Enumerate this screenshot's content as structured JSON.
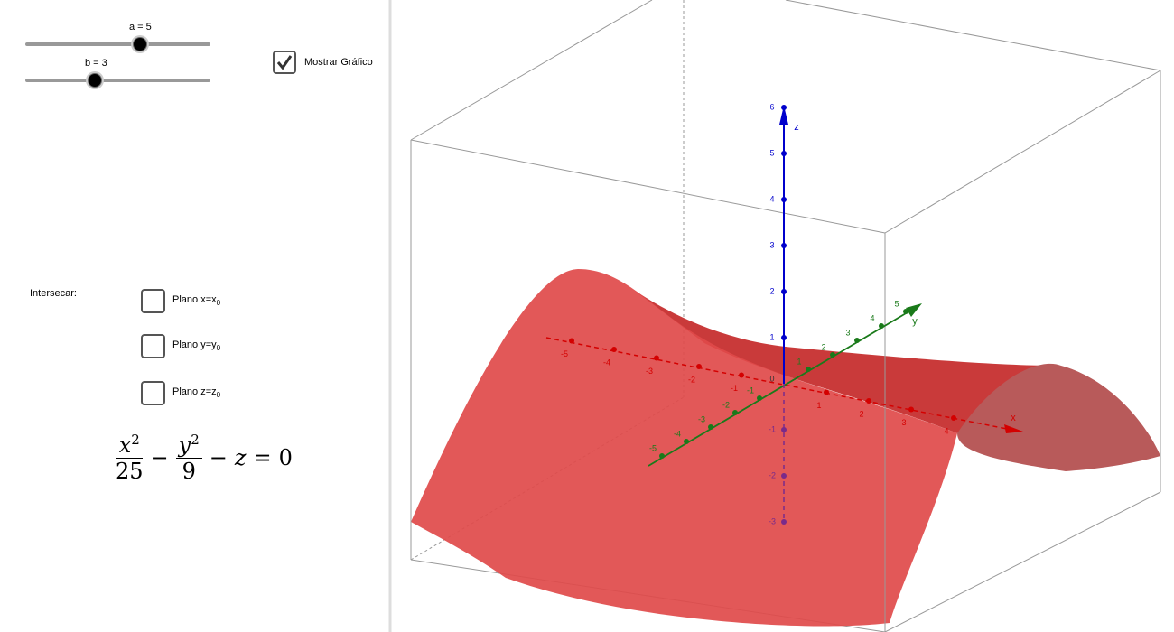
{
  "sliders": [
    {
      "label": "a = 5"
    },
    {
      "label": "b = 3"
    }
  ],
  "show_graph": {
    "label": "Mostrar Gráfico",
    "checked": true
  },
  "intersect": {
    "label": "Intersecar:",
    "options": [
      {
        "text": "Plano x=x",
        "sub": "0"
      },
      {
        "text": "Plano y=y",
        "sub": "0"
      },
      {
        "text": "Plano z=z",
        "sub": "0"
      }
    ]
  },
  "equation": {
    "t1": {
      "num": "x",
      "exp": "2",
      "den": "25"
    },
    "op1": "−",
    "t2": {
      "num": "y",
      "exp": "2",
      "den": "9"
    },
    "op2": "−",
    "t3": "z",
    "op3": "=",
    "rhs": "0"
  },
  "graph": {
    "origin_label": "0",
    "axes": [
      {
        "name": "x",
        "ticks": [
          -5,
          -4,
          -3,
          -2,
          -1,
          1,
          2,
          3,
          4
        ]
      },
      {
        "name": "y",
        "ticks": [
          -5,
          -4,
          -3,
          -2,
          -1,
          1,
          2,
          3,
          4,
          5
        ]
      },
      {
        "name": "z",
        "ticks": [
          -3,
          -2,
          -1,
          1,
          2,
          3,
          4,
          5,
          6
        ]
      }
    ]
  }
}
